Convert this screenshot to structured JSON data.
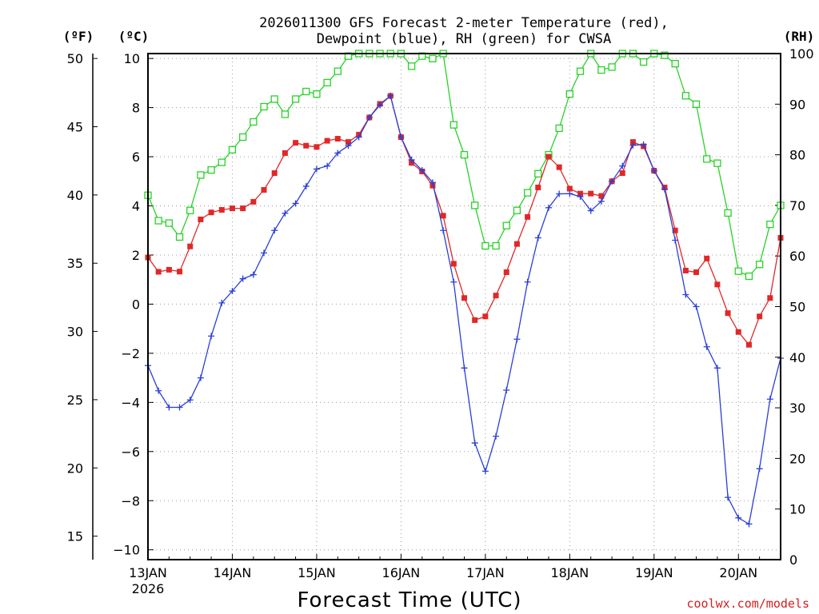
{
  "chart_data": {
    "type": "line",
    "title_line1": "2026011300 GFS Forecast 2-meter Temperature (red),",
    "title_line2": "Dewpoint (blue), RH (green) for CWSA",
    "xlabel": "Forecast Time (UTC)",
    "credit": "coolwx.com/models",
    "unit_left_outer": "(ºF)",
    "unit_left_inner": "(ºC)",
    "unit_right": "(RH)",
    "x_unit": "days since 13JAN 00Z",
    "xlim": [
      0,
      7.5
    ],
    "x_ticks": [
      {
        "x": 0,
        "label": "13JAN",
        "sub": "2026"
      },
      {
        "x": 1,
        "label": "14JAN"
      },
      {
        "x": 2,
        "label": "15JAN"
      },
      {
        "x": 3,
        "label": "16JAN"
      },
      {
        "x": 4,
        "label": "17JAN"
      },
      {
        "x": 5,
        "label": "18JAN"
      },
      {
        "x": 6,
        "label": "19JAN"
      },
      {
        "x": 7,
        "label": "20JAN"
      }
    ],
    "celsius_axis": {
      "range": [
        -10.4,
        10.2
      ],
      "ticks": [
        -10,
        -8,
        -6,
        -4,
        -2,
        0,
        2,
        4,
        6,
        8,
        10
      ],
      "tick_labels": [
        "−10",
        "−8",
        "−6",
        "−4",
        "−2",
        "0",
        "2",
        "4",
        "6",
        "8",
        "10"
      ]
    },
    "fahrenheit_axis": {
      "ticks": [
        15,
        20,
        25,
        30,
        35,
        40,
        45,
        50
      ],
      "tick_labels": [
        "15",
        "20",
        "25",
        "30",
        "35",
        "40",
        "45",
        "50"
      ]
    },
    "rh_axis": {
      "range": [
        0,
        100
      ],
      "ticks": [
        0,
        10,
        20,
        30,
        40,
        50,
        60,
        70,
        80,
        90,
        100
      ],
      "tick_labels": [
        "0",
        "10",
        "20",
        "30",
        "40",
        "50",
        "60",
        "70",
        "80",
        "90",
        "100"
      ]
    },
    "series": [
      {
        "name": "Temperature",
        "color": "#e02828",
        "marker": "filled-square",
        "axis": "celsius",
        "knots": [
          [
            0,
            1.9
          ],
          [
            0.04,
            1.7
          ],
          [
            0.1,
            1.3
          ],
          [
            0.25,
            1.4
          ],
          [
            0.37,
            1.3
          ],
          [
            0.45,
            1.7
          ],
          [
            0.55,
            3.0
          ],
          [
            0.65,
            3.6
          ],
          [
            0.8,
            3.8
          ],
          [
            1.0,
            3.9
          ],
          [
            1.15,
            3.9
          ],
          [
            1.3,
            4.3
          ],
          [
            1.45,
            5.0
          ],
          [
            1.6,
            6.0
          ],
          [
            1.7,
            6.6
          ],
          [
            1.85,
            6.5
          ],
          [
            1.95,
            6.3
          ],
          [
            2.1,
            6.6
          ],
          [
            2.2,
            6.8
          ],
          [
            2.35,
            6.6
          ],
          [
            2.45,
            6.6
          ],
          [
            2.5,
            6.9
          ],
          [
            2.6,
            7.4
          ],
          [
            2.7,
            8.2
          ],
          [
            2.8,
            8.1
          ],
          [
            2.88,
            8.5
          ],
          [
            2.92,
            9.2
          ],
          [
            2.97,
            7.8
          ],
          [
            3.0,
            6.8
          ],
          [
            3.1,
            5.8
          ],
          [
            3.2,
            5.6
          ],
          [
            3.35,
            5.0
          ],
          [
            3.45,
            4.3
          ],
          [
            3.5,
            3.6
          ],
          [
            3.55,
            2.4
          ],
          [
            3.62,
            1.7
          ],
          [
            3.7,
            0.8
          ],
          [
            3.8,
            -0.3
          ],
          [
            3.85,
            -0.8
          ],
          [
            3.9,
            -0.5
          ],
          [
            4.0,
            -0.5
          ],
          [
            4.1,
            0.2
          ],
          [
            4.2,
            0.8
          ],
          [
            4.3,
            1.8
          ],
          [
            4.45,
            3.1
          ],
          [
            4.55,
            4.0
          ],
          [
            4.65,
            5.0
          ],
          [
            4.72,
            5.9
          ],
          [
            4.78,
            6.1
          ],
          [
            4.85,
            5.8
          ],
          [
            4.95,
            4.9
          ],
          [
            5.05,
            4.5
          ],
          [
            5.15,
            4.5
          ],
          [
            5.25,
            4.5
          ],
          [
            5.38,
            4.4
          ],
          [
            5.5,
            5.0
          ],
          [
            5.65,
            5.4
          ],
          [
            5.75,
            6.6
          ],
          [
            5.85,
            6.7
          ],
          [
            5.95,
            5.6
          ],
          [
            6.1,
            5.1
          ],
          [
            6.25,
            3.0
          ],
          [
            6.38,
            1.3
          ],
          [
            6.5,
            1.3
          ],
          [
            6.62,
            1.9
          ],
          [
            6.75,
            0.8
          ],
          [
            6.9,
            -0.6
          ],
          [
            7.05,
            -1.4
          ],
          [
            7.12,
            -1.7
          ],
          [
            7.25,
            -0.5
          ],
          [
            7.4,
            0.4
          ],
          [
            7.5,
            2.7
          ]
        ]
      },
      {
        "name": "Dewpoint",
        "color": "#2a3fd6",
        "marker": "plus",
        "axis": "celsius",
        "knots": [
          [
            0,
            -2.5
          ],
          [
            0.1,
            -3.3
          ],
          [
            0.2,
            -4.2
          ],
          [
            0.35,
            -4.2
          ],
          [
            0.45,
            -4.2
          ],
          [
            0.5,
            -3.9
          ],
          [
            0.55,
            -3.3
          ],
          [
            0.65,
            -2.9
          ],
          [
            0.7,
            -2.4
          ],
          [
            0.8,
            -0.2
          ],
          [
            0.95,
            0.3
          ],
          [
            1.1,
            1.0
          ],
          [
            1.25,
            1.2
          ],
          [
            1.35,
            1.9
          ],
          [
            1.5,
            3.0
          ],
          [
            1.6,
            3.6
          ],
          [
            1.7,
            4.0
          ],
          [
            1.8,
            4.2
          ],
          [
            1.9,
            5.0
          ],
          [
            2.0,
            5.5
          ],
          [
            2.1,
            5.5
          ],
          [
            2.2,
            6.0
          ],
          [
            2.3,
            6.3
          ],
          [
            2.45,
            6.6
          ],
          [
            2.55,
            7.0
          ],
          [
            2.65,
            7.8
          ],
          [
            2.7,
            8.0
          ],
          [
            2.8,
            8.2
          ],
          [
            2.88,
            8.5
          ],
          [
            2.92,
            9.2
          ],
          [
            2.97,
            7.8
          ],
          [
            3.0,
            6.8
          ],
          [
            3.1,
            6.0
          ],
          [
            3.2,
            5.5
          ],
          [
            3.3,
            5.4
          ],
          [
            3.4,
            4.8
          ],
          [
            3.45,
            4.0
          ],
          [
            3.5,
            3.0
          ],
          [
            3.55,
            2.4
          ],
          [
            3.6,
            1.3
          ],
          [
            3.65,
            0.5
          ],
          [
            3.7,
            -1.5
          ],
          [
            3.75,
            -2.6
          ],
          [
            3.8,
            -3.9
          ],
          [
            3.85,
            -5.0
          ],
          [
            3.9,
            -6.3
          ],
          [
            3.95,
            -6.6
          ],
          [
            4.0,
            -6.8
          ],
          [
            4.05,
            -6.5
          ],
          [
            4.15,
            -5.0
          ],
          [
            4.25,
            -3.5
          ],
          [
            4.35,
            -1.9
          ],
          [
            4.45,
            0.0
          ],
          [
            4.55,
            1.8
          ],
          [
            4.65,
            3.0
          ],
          [
            4.72,
            3.7
          ],
          [
            4.8,
            4.3
          ],
          [
            4.88,
            4.5
          ],
          [
            4.95,
            4.4
          ],
          [
            5.05,
            4.6
          ],
          [
            5.15,
            4.3
          ],
          [
            5.25,
            3.8
          ],
          [
            5.38,
            4.2
          ],
          [
            5.5,
            5.0
          ],
          [
            5.6,
            5.4
          ],
          [
            5.7,
            6.3
          ],
          [
            5.85,
            6.8
          ],
          [
            5.95,
            5.6
          ],
          [
            6.1,
            5.1
          ],
          [
            6.25,
            2.6
          ],
          [
            6.38,
            0.3
          ],
          [
            6.5,
            -0.1
          ],
          [
            6.62,
            -1.7
          ],
          [
            6.75,
            -2.6
          ],
          [
            6.85,
            -7.7
          ],
          [
            7.0,
            -8.7
          ],
          [
            7.1,
            -9.4
          ],
          [
            7.25,
            -6.7
          ],
          [
            7.4,
            -3.3
          ],
          [
            7.5,
            -2.2
          ]
        ]
      },
      {
        "name": "RH",
        "color": "#28d228",
        "marker": "open-square",
        "axis": "rh",
        "knots": [
          [
            0,
            72
          ],
          [
            0.08,
            70
          ],
          [
            0.12,
            67
          ],
          [
            0.25,
            66.5
          ],
          [
            0.33,
            66
          ],
          [
            0.38,
            63.5
          ],
          [
            0.45,
            69
          ],
          [
            0.52,
            69
          ],
          [
            0.55,
            70
          ],
          [
            0.6,
            75
          ],
          [
            0.65,
            77
          ],
          [
            0.72,
            76
          ],
          [
            0.75,
            77
          ],
          [
            0.85,
            78
          ],
          [
            1.0,
            81
          ],
          [
            1.1,
            83
          ],
          [
            1.2,
            85
          ],
          [
            1.3,
            88
          ],
          [
            1.4,
            90
          ],
          [
            1.5,
            91
          ],
          [
            1.6,
            90
          ],
          [
            1.65,
            86
          ],
          [
            1.7,
            86
          ],
          [
            1.75,
            91
          ],
          [
            1.8,
            94
          ],
          [
            1.9,
            92
          ],
          [
            1.95,
            91
          ],
          [
            2.1,
            94
          ],
          [
            2.2,
            95
          ],
          [
            2.3,
            98
          ],
          [
            2.4,
            100
          ],
          [
            2.6,
            100
          ],
          [
            2.8,
            100
          ],
          [
            3.0,
            100
          ],
          [
            3.05,
            96
          ],
          [
            3.15,
            98
          ],
          [
            3.25,
            99.5
          ],
          [
            3.35,
            100
          ],
          [
            3.4,
            98
          ],
          [
            3.45,
            96
          ],
          [
            3.5,
            100
          ],
          [
            3.55,
            99
          ],
          [
            3.6,
            99
          ],
          [
            3.62,
            86
          ],
          [
            3.68,
            85
          ],
          [
            3.7,
            90
          ],
          [
            3.72,
            76
          ],
          [
            3.75,
            80
          ],
          [
            3.8,
            79
          ],
          [
            3.85,
            76
          ],
          [
            3.9,
            64
          ],
          [
            3.95,
            63
          ],
          [
            4.0,
            62
          ],
          [
            4.05,
            62
          ],
          [
            4.1,
            61
          ],
          [
            4.15,
            63
          ],
          [
            4.2,
            65
          ],
          [
            4.3,
            67
          ],
          [
            4.45,
            71
          ],
          [
            4.55,
            74
          ],
          [
            4.65,
            77
          ],
          [
            4.75,
            80
          ],
          [
            4.85,
            84
          ],
          [
            4.95,
            89
          ],
          [
            5.0,
            92
          ],
          [
            5.05,
            95
          ],
          [
            5.15,
            97
          ],
          [
            5.2,
            99
          ],
          [
            5.25,
            100
          ],
          [
            5.35,
            97
          ],
          [
            5.45,
            96
          ],
          [
            5.6,
            100
          ],
          [
            5.75,
            100
          ],
          [
            5.85,
            98
          ],
          [
            6.0,
            100
          ],
          [
            6.1,
            100
          ],
          [
            6.25,
            98
          ],
          [
            6.35,
            92
          ],
          [
            6.5,
            90
          ],
          [
            6.65,
            77
          ],
          [
            6.8,
            79
          ],
          [
            6.95,
            58
          ],
          [
            7.05,
            56
          ],
          [
            7.2,
            56
          ],
          [
            7.35,
            63
          ],
          [
            7.45,
            76
          ],
          [
            7.5,
            70
          ]
        ]
      }
    ]
  }
}
